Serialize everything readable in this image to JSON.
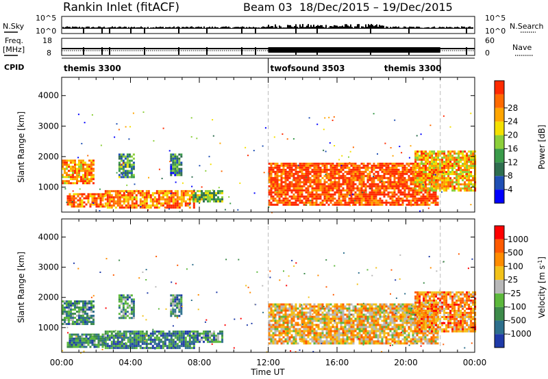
{
  "header": {
    "title": "Rankin Inlet (fitACF)",
    "beam": "Beam 03",
    "dates": "18/Dec/2015 – 19/Dec/2015"
  },
  "noise_panel": {
    "left_label": "N.Sky",
    "right_label": "N.Search",
    "left_ticks": [
      "10^5",
      "10^0"
    ],
    "right_ticks": [
      "10^5",
      "10^0"
    ]
  },
  "freq_panel": {
    "left_label_1": "Freq.",
    "left_label_2": "[MHz]",
    "right_label": "Nave",
    "left_ticks": [
      "18",
      "8"
    ],
    "right_ticks": [
      "60",
      "0"
    ]
  },
  "cpid_panel": {
    "label": "CPID",
    "segments": [
      {
        "start_hour": 0,
        "end_hour": 12,
        "name": "themis 3300"
      },
      {
        "start_hour": 12,
        "end_hour": 22,
        "name": "twofsound 3503"
      },
      {
        "start_hour": 22,
        "end_hour": 24,
        "name": "themis 3300"
      }
    ]
  },
  "chart_data": [
    {
      "type": "heatmap",
      "panel": "power",
      "ylabel": "Slant Range [km]",
      "xlabel": "",
      "x_range_hours": [
        0,
        24
      ],
      "ylim": [
        180,
        4600
      ],
      "yticks": [
        1000,
        2000,
        3000,
        4000
      ],
      "colorbar": {
        "label": "Power [dB]",
        "ticks": [
          "4",
          "8",
          "12",
          "16",
          "20",
          "24",
          "28"
        ],
        "colors": [
          "#0000ff",
          "#1f4fb4",
          "#2e6e4f",
          "#3a9b4a",
          "#8ccf3a",
          "#f4e000",
          "#ffa500",
          "#ff6a00",
          "#ff2a00"
        ]
      },
      "echo_regions": [
        {
          "t0": 0.0,
          "t1": 1.8,
          "r0": 1150,
          "r1": 1900,
          "level": 0.75
        },
        {
          "t0": 0.3,
          "t1": 2.5,
          "r0": 350,
          "r1": 800,
          "level": 0.85
        },
        {
          "t0": 2.5,
          "t1": 7.7,
          "r0": 300,
          "r1": 900,
          "level": 0.8
        },
        {
          "t0": 3.3,
          "t1": 4.2,
          "r0": 1350,
          "r1": 2100,
          "level": 0.35
        },
        {
          "t0": 6.3,
          "t1": 6.9,
          "r0": 1400,
          "r1": 2100,
          "level": 0.3
        },
        {
          "t0": 7.6,
          "t1": 9.3,
          "r0": 500,
          "r1": 900,
          "level": 0.45
        },
        {
          "t0": 12.0,
          "t1": 21.9,
          "r0": 450,
          "r1": 1800,
          "level": 0.92
        },
        {
          "t0": 20.5,
          "t1": 24.0,
          "r0": 900,
          "r1": 2200,
          "level": 0.7
        }
      ]
    },
    {
      "type": "heatmap",
      "panel": "velocity",
      "ylabel": "Slant Range [km]",
      "xlabel": "Time UT",
      "xticks": [
        "00:00",
        "04:00",
        "08:00",
        "12:00",
        "16:00",
        "20:00",
        "00:00"
      ],
      "x_range_hours": [
        0,
        24
      ],
      "ylim": [
        180,
        4600
      ],
      "yticks": [
        1000,
        2000,
        3000,
        4000
      ],
      "colorbar": {
        "label": "Velocity [m s^-1]",
        "ticks": [
          "1000",
          "500",
          "100",
          "25",
          "-25",
          "-100",
          "-500",
          "-1000"
        ],
        "colors": [
          "#1f3aa8",
          "#2d6f8c",
          "#3d8b4a",
          "#5cb83c",
          "#b8b8b8",
          "#f2c21a",
          "#ff8c00",
          "#ff5a00",
          "#ff0000"
        ]
      },
      "echo_regions": [
        {
          "t0": 0.0,
          "t1": 1.8,
          "r0": 1150,
          "r1": 1900,
          "level": 0.3
        },
        {
          "t0": 0.3,
          "t1": 2.5,
          "r0": 350,
          "r1": 800,
          "level": 0.25
        },
        {
          "t0": 2.5,
          "t1": 7.7,
          "r0": 300,
          "r1": 900,
          "level": 0.22
        },
        {
          "t0": 3.3,
          "t1": 4.2,
          "r0": 1350,
          "r1": 2100,
          "level": 0.3
        },
        {
          "t0": 6.3,
          "t1": 6.9,
          "r0": 1400,
          "r1": 2100,
          "level": 0.3
        },
        {
          "t0": 7.6,
          "t1": 9.3,
          "r0": 500,
          "r1": 900,
          "level": 0.3
        },
        {
          "t0": 12.0,
          "t1": 21.9,
          "r0": 450,
          "r1": 1800,
          "level": 0.62
        },
        {
          "t0": 20.5,
          "t1": 24.0,
          "r0": 900,
          "r1": 2200,
          "level": 0.72
        }
      ]
    }
  ]
}
